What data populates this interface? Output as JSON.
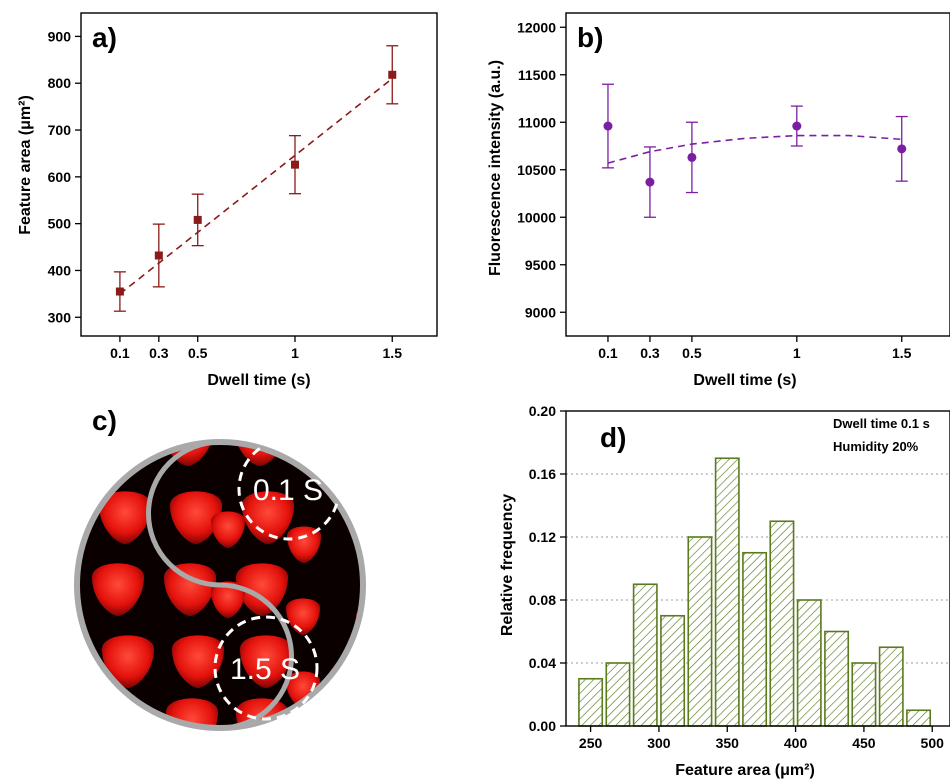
{
  "chart_data": [
    {
      "type": "scatter",
      "panel": "a)",
      "xlabel": "Dwell time (s)",
      "ylabel": "Feature area (μm²)",
      "xlim": [
        -0.1,
        1.73
      ],
      "ylim": [
        260,
        950
      ],
      "xticks": [
        {
          "v": 0.1,
          "label": "0.1"
        },
        {
          "v": 0.3,
          "label": "0.3"
        },
        {
          "v": 0.5,
          "label": "0.5"
        },
        {
          "v": 1,
          "label": "1"
        },
        {
          "v": 1.5,
          "label": "1.5"
        }
      ],
      "yticks": [
        {
          "v": 300,
          "label": "300"
        },
        {
          "v": 400,
          "label": "400"
        },
        {
          "v": 500,
          "label": "500"
        },
        {
          "v": 600,
          "label": "600"
        },
        {
          "v": 700,
          "label": "700"
        },
        {
          "v": 800,
          "label": "800"
        },
        {
          "v": 900,
          "label": "900"
        }
      ],
      "color": "#8b1a1a",
      "marker": "square",
      "series": [
        {
          "x": [
            0.1,
            0.3,
            0.5,
            1.0,
            1.5
          ],
          "y": [
            355,
            432,
            508,
            626,
            818
          ],
          "yerr": [
            42,
            67,
            55,
            62,
            62
          ]
        }
      ],
      "fit": {
        "style": "dashed",
        "kind": "linear",
        "x": [
          0.1,
          1.5
        ],
        "y": [
          350,
          810
        ]
      },
      "grid": false
    },
    {
      "type": "scatter",
      "panel": "b)",
      "xlabel": "Dwell time (s)",
      "ylabel": "Fluorescence intensity (a.u.)",
      "xlim": [
        -0.1,
        1.73
      ],
      "ylim": [
        8750,
        12150
      ],
      "xticks": [
        {
          "v": 0.1,
          "label": "0.1"
        },
        {
          "v": 0.3,
          "label": "0.3"
        },
        {
          "v": 0.5,
          "label": "0.5"
        },
        {
          "v": 1,
          "label": "1"
        },
        {
          "v": 1.5,
          "label": "1.5"
        }
      ],
      "yticks": [
        {
          "v": 9000,
          "label": "9000"
        },
        {
          "v": 9500,
          "label": "9500"
        },
        {
          "v": 10000,
          "label": "10000"
        },
        {
          "v": 10500,
          "label": "10500"
        },
        {
          "v": 11000,
          "label": "11000"
        },
        {
          "v": 11500,
          "label": "11500"
        },
        {
          "v": 12000,
          "label": "12000"
        }
      ],
      "color": "#7b1fa2",
      "marker": "circle",
      "series": [
        {
          "x": [
            0.1,
            0.3,
            0.5,
            1.0,
            1.5
          ],
          "y": [
            10960,
            10370,
            10630,
            10960,
            10720
          ],
          "yerr": [
            440,
            370,
            370,
            210,
            340
          ]
        }
      ],
      "fit": {
        "style": "dashed",
        "kind": "quadratic",
        "x": [
          0.1,
          0.3,
          0.5,
          0.75,
          1.0,
          1.25,
          1.5
        ],
        "y": [
          10570,
          10690,
          10770,
          10830,
          10860,
          10860,
          10820
        ]
      },
      "grid": false
    },
    {
      "type": "bar",
      "panel": "d)",
      "xlabel": "Feature area (μm²)",
      "ylabel": "Relative frequency",
      "xlim": [
        232,
        513
      ],
      "ylim": [
        0,
        0.2
      ],
      "xticks": [
        {
          "v": 250,
          "label": "250"
        },
        {
          "v": 300,
          "label": "300"
        },
        {
          "v": 350,
          "label": "350"
        },
        {
          "v": 400,
          "label": "400"
        },
        {
          "v": 450,
          "label": "450"
        },
        {
          "v": 500,
          "label": "500"
        }
      ],
      "yticks": [
        {
          "v": 0,
          "label": "0.00"
        },
        {
          "v": 0.04,
          "label": "0.04"
        },
        {
          "v": 0.08,
          "label": "0.08"
        },
        {
          "v": 0.12,
          "label": "0.12"
        },
        {
          "v": 0.16,
          "label": "0.16"
        },
        {
          "v": 0.2,
          "label": "0.20"
        }
      ],
      "bin_width": 20,
      "categories": [
        250,
        270,
        290,
        310,
        330,
        350,
        370,
        390,
        410,
        430,
        450,
        470,
        490
      ],
      "values": [
        0.03,
        0.04,
        0.09,
        0.07,
        0.12,
        0.17,
        0.11,
        0.13,
        0.08,
        0.06,
        0.04,
        0.05,
        0.01
      ],
      "color": "#5a7a1e",
      "fill": "hatched",
      "grid": "horizontal dotted",
      "annotations": [
        "Dwell time 0.1 s",
        "Humidity 20%"
      ]
    }
  ],
  "micrograph": {
    "panel": "c)",
    "labels": [
      "0.1 S",
      "1.5 S"
    ]
  }
}
